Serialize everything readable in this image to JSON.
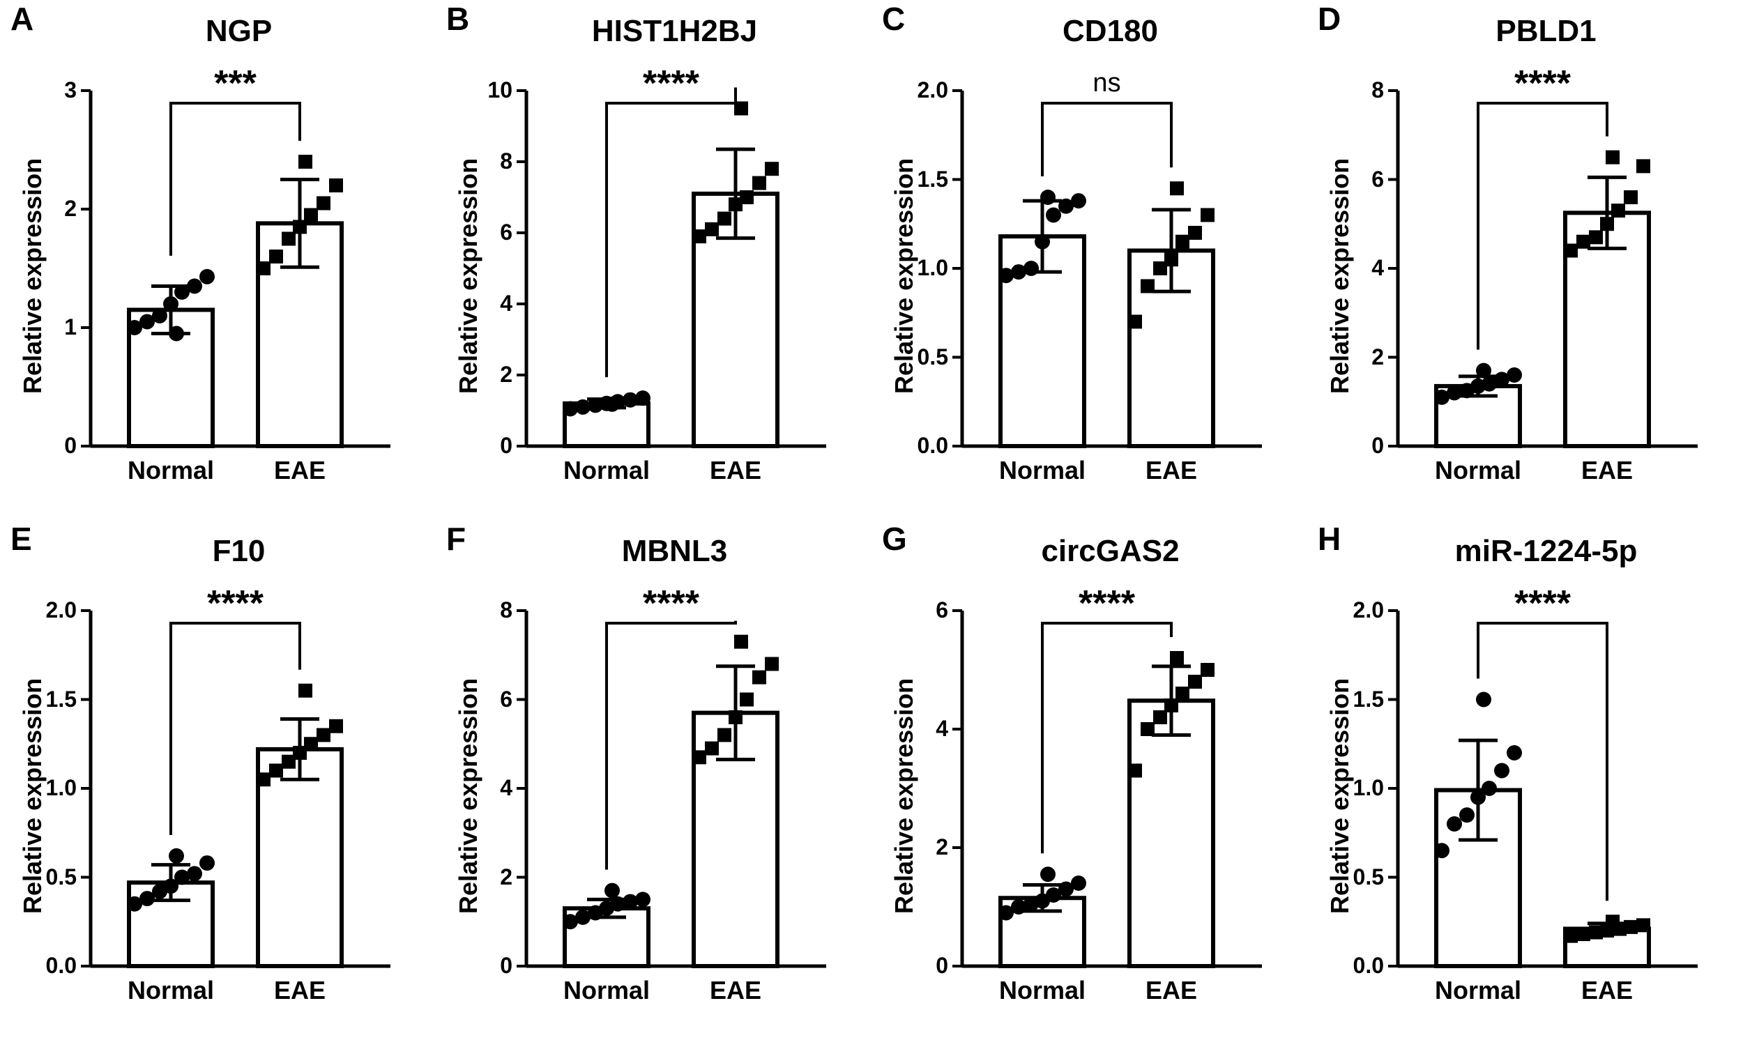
{
  "figure": {
    "colors": {
      "ink": "#000000",
      "bar_fill": "#ffffff"
    }
  },
  "chart_data": [
    {
      "panel": "A",
      "type": "bar",
      "title": "NGP",
      "ylabel": "Relative expression",
      "ylim": [
        0,
        3
      ],
      "yticks": [
        "0",
        "1",
        "2",
        "3"
      ],
      "ytick_values": [
        0,
        1,
        2,
        3
      ],
      "categories": [
        "Normal",
        "EAE"
      ],
      "means": [
        1.15,
        1.88
      ],
      "sd": [
        0.2,
        0.37
      ],
      "points": [
        [
          1.0,
          1.05,
          1.1,
          1.2,
          1.3,
          1.35,
          1.43,
          0.95
        ],
        [
          1.5,
          1.6,
          1.75,
          1.85,
          1.95,
          2.05,
          2.2,
          2.4
        ]
      ],
      "markers": [
        "circle",
        "square"
      ],
      "significance": "***"
    },
    {
      "panel": "B",
      "type": "bar",
      "title": "HIST1H2BJ",
      "ylabel": "Relative expression",
      "ylim": [
        0,
        10
      ],
      "yticks": [
        "0",
        "2",
        "4",
        "6",
        "8",
        "10"
      ],
      "ytick_values": [
        0,
        2,
        4,
        6,
        8,
        10
      ],
      "categories": [
        "Normal",
        "EAE"
      ],
      "means": [
        1.2,
        7.1
      ],
      "sd": [
        0.12,
        1.25
      ],
      "points": [
        [
          1.05,
          1.1,
          1.15,
          1.2,
          1.25,
          1.3,
          1.35,
          1.18
        ],
        [
          5.9,
          6.1,
          6.4,
          6.8,
          7.0,
          7.4,
          7.8,
          9.5
        ]
      ],
      "markers": [
        "circle",
        "square"
      ],
      "significance": "****"
    },
    {
      "panel": "C",
      "type": "bar",
      "title": "CD180",
      "ylabel": "Relative expression",
      "ylim": [
        0,
        2
      ],
      "yticks": [
        "0.0",
        "0.5",
        "1.0",
        "1.5",
        "2.0"
      ],
      "ytick_values": [
        0,
        0.5,
        1,
        1.5,
        2
      ],
      "categories": [
        "Normal",
        "EAE"
      ],
      "means": [
        1.18,
        1.1
      ],
      "sd": [
        0.2,
        0.23
      ],
      "points": [
        [
          0.96,
          0.98,
          1.0,
          1.15,
          1.3,
          1.35,
          1.38,
          1.4
        ],
        [
          0.7,
          0.9,
          1.0,
          1.05,
          1.15,
          1.2,
          1.3,
          1.45
        ]
      ],
      "markers": [
        "circle",
        "square"
      ],
      "significance": "ns"
    },
    {
      "panel": "D",
      "type": "bar",
      "title": "PBLD1",
      "ylabel": "Relative expression",
      "ylim": [
        0,
        8
      ],
      "yticks": [
        "0",
        "2",
        "4",
        "6",
        "8"
      ],
      "ytick_values": [
        0,
        2,
        4,
        6,
        8
      ],
      "categories": [
        "Normal",
        "EAE"
      ],
      "means": [
        1.35,
        5.25
      ],
      "sd": [
        0.22,
        0.8
      ],
      "points": [
        [
          1.1,
          1.2,
          1.25,
          1.35,
          1.4,
          1.5,
          1.6,
          1.7
        ],
        [
          4.4,
          4.6,
          4.7,
          5.0,
          5.3,
          5.6,
          6.3,
          6.5
        ]
      ],
      "markers": [
        "circle",
        "square"
      ],
      "significance": "****"
    },
    {
      "panel": "E",
      "type": "bar",
      "title": "F10",
      "ylabel": "Relative expression",
      "ylim": [
        0,
        2
      ],
      "yticks": [
        "0.0",
        "0.5",
        "1.0",
        "1.5",
        "2.0"
      ],
      "ytick_values": [
        0,
        0.5,
        1,
        1.5,
        2
      ],
      "categories": [
        "Normal",
        "EAE"
      ],
      "means": [
        0.47,
        1.22
      ],
      "sd": [
        0.1,
        0.17
      ],
      "points": [
        [
          0.35,
          0.38,
          0.42,
          0.45,
          0.5,
          0.52,
          0.58,
          0.62
        ],
        [
          1.05,
          1.1,
          1.15,
          1.2,
          1.25,
          1.3,
          1.35,
          1.55
        ]
      ],
      "markers": [
        "circle",
        "square"
      ],
      "significance": "****"
    },
    {
      "panel": "F",
      "type": "bar",
      "title": "MBNL3",
      "ylabel": "Relative expression",
      "ylim": [
        0,
        8
      ],
      "yticks": [
        "0",
        "2",
        "4",
        "6",
        "8"
      ],
      "ytick_values": [
        0,
        2,
        4,
        6,
        8
      ],
      "categories": [
        "Normal",
        "EAE"
      ],
      "means": [
        1.3,
        5.7
      ],
      "sd": [
        0.2,
        1.05
      ],
      "points": [
        [
          1.0,
          1.1,
          1.2,
          1.3,
          1.4,
          1.45,
          1.5,
          1.7
        ],
        [
          4.7,
          4.9,
          5.2,
          5.6,
          6.0,
          6.5,
          6.8,
          7.3
        ]
      ],
      "markers": [
        "circle",
        "square"
      ],
      "significance": "****"
    },
    {
      "panel": "G",
      "type": "bar",
      "title": "circGAS2",
      "ylabel": "Relative expression",
      "ylim": [
        0,
        6
      ],
      "yticks": [
        "0",
        "2",
        "4",
        "6"
      ],
      "ytick_values": [
        0,
        2,
        4,
        6
      ],
      "categories": [
        "Normal",
        "EAE"
      ],
      "means": [
        1.15,
        4.48
      ],
      "sd": [
        0.22,
        0.58
      ],
      "points": [
        [
          0.9,
          1.0,
          1.05,
          1.1,
          1.2,
          1.3,
          1.4,
          1.55
        ],
        [
          3.3,
          4.0,
          4.2,
          4.4,
          4.6,
          4.8,
          5.0,
          5.2
        ]
      ],
      "markers": [
        "circle",
        "square"
      ],
      "significance": "****"
    },
    {
      "panel": "H",
      "type": "bar",
      "title": "miR-1224-5p",
      "ylabel": "Relative expression",
      "ylim": [
        0,
        2
      ],
      "yticks": [
        "0.0",
        "0.5",
        "1.0",
        "1.5",
        "2.0"
      ],
      "ytick_values": [
        0,
        0.5,
        1,
        1.5,
        2
      ],
      "categories": [
        "Normal",
        "EAE"
      ],
      "means": [
        0.99,
        0.21
      ],
      "sd": [
        0.28,
        0.03
      ],
      "points": [
        [
          0.65,
          0.8,
          0.85,
          0.95,
          1.0,
          1.1,
          1.2,
          1.5
        ],
        [
          0.17,
          0.18,
          0.19,
          0.2,
          0.21,
          0.22,
          0.23,
          0.25
        ]
      ],
      "markers": [
        "circle",
        "square"
      ],
      "significance": "****"
    }
  ]
}
